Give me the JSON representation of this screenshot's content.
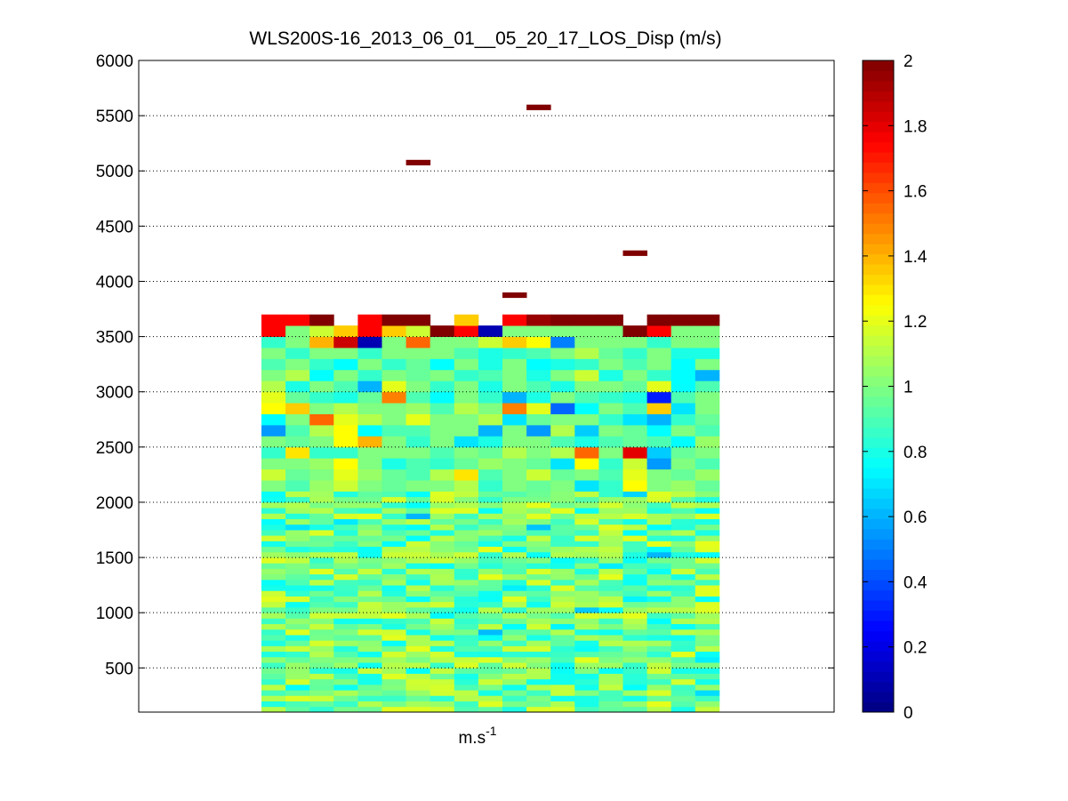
{
  "chart_data": {
    "type": "heatmap",
    "title": "WLS200S-16_2013_06_01__05_20_17_LOS_Disp (m/s)",
    "xlabel": "m.s",
    "xlabel_superscript": "-1",
    "ylabel": "",
    "ylim": [
      100,
      6000
    ],
    "y_ticks": [
      "500",
      "1000",
      "1500",
      "2000",
      "2500",
      "3000",
      "3500",
      "4000",
      "4500",
      "5000",
      "5500",
      "6000"
    ],
    "grid": "horizontal dotted",
    "colorbar": {
      "colormap": "jet",
      "range": [
        0,
        2
      ],
      "ticks": [
        "0",
        "0.2",
        "0.4",
        "0.6",
        "0.8",
        "1",
        "1.2",
        "1.4",
        "1.6",
        "1.8",
        "2"
      ]
    },
    "columns": 19,
    "range_gate_m": 50,
    "grid_values": {
      "3650": [
        2,
        null,
        null,
        null,
        null,
        null,
        null,
        null,
        null,
        null,
        null,
        null,
        2,
        null,
        null,
        null,
        null,
        null,
        null
      ],
      "3600": [
        1.75,
        1.75,
        2,
        null,
        1.75,
        2,
        2,
        null,
        1.35,
        null,
        1.75,
        1.95,
        2,
        2,
        2,
        null,
        2,
        2,
        2
      ],
      "3500": [
        1.75,
        1,
        1.15,
        1.35,
        1.75,
        1.35,
        1.15,
        2,
        1.75,
        0.1,
        1,
        1,
        1,
        1,
        1,
        2,
        1.75,
        1,
        1
      ],
      "3400": [
        0.85,
        1,
        1.4,
        1.85,
        0.1,
        1,
        1.55,
        1,
        1,
        1.15,
        1.35,
        1.25,
        0.5,
        1,
        1,
        1,
        0.85,
        1,
        1
      ],
      "3300": [
        1,
        0.85,
        1,
        1,
        0.85,
        1,
        1,
        1,
        0.9,
        0.8,
        0.85,
        0.9,
        1,
        1.1,
        0.95,
        0.85,
        1,
        0.8,
        0.8
      ],
      "3200": [
        0.9,
        1,
        0.85,
        0.75,
        1,
        0.85,
        0.95,
        0.75,
        1,
        0.8,
        1,
        0.75,
        0.8,
        0.85,
        1,
        0.9,
        1,
        0.75,
        1
      ],
      "3100": [
        1,
        1.1,
        0.75,
        1,
        0.85,
        1,
        0.95,
        1,
        0.85,
        0.9,
        1,
        0.8,
        1,
        1.15,
        0.8,
        1,
        0.85,
        0.75,
        0.6
      ],
      "3000": [
        1.1,
        0.8,
        1,
        0.9,
        0.6,
        1.2,
        1,
        0.85,
        1,
        0.8,
        1,
        0.9,
        0.8,
        1,
        1,
        0.95,
        1.2,
        0.75,
        0.9
      ],
      "2900": [
        1.2,
        0.95,
        0.85,
        0.8,
        0.95,
        1.5,
        0.9,
        0.75,
        1,
        0.85,
        0.6,
        0.8,
        1,
        0.9,
        0.85,
        0.8,
        0.3,
        0.9,
        1
      ],
      "2800": [
        1.25,
        1.35,
        1,
        1.1,
        1,
        1,
        1.05,
        0.9,
        1.1,
        1,
        1.5,
        1.2,
        0.45,
        0.75,
        1,
        0.9,
        1.35,
        0.7,
        1
      ],
      "2700": [
        0.75,
        1,
        1.55,
        1.2,
        1.1,
        1,
        1.2,
        1,
        1,
        1.1,
        0.7,
        0.95,
        1,
        1,
        0.85,
        0.7,
        0.6,
        0.85,
        0.95
      ],
      "2600": [
        0.55,
        0.9,
        1.1,
        1.25,
        0.75,
        0.9,
        0.9,
        1,
        1,
        0.6,
        1,
        0.55,
        1.1,
        0.65,
        1,
        0.95,
        0.75,
        1,
        0.9
      ],
      "2500": [
        1,
        0.95,
        1,
        1.25,
        1.4,
        1,
        0.85,
        1,
        0.7,
        0.8,
        1,
        1,
        0.9,
        0.8,
        0.9,
        0.95,
        0.9,
        0.75,
        1.05
      ],
      "2400": [
        0.85,
        1.3,
        0.85,
        0.85,
        1,
        1,
        1,
        0.9,
        1,
        0.95,
        1.1,
        1,
        1.1,
        1.55,
        1,
        1.8,
        0.65,
        0.95,
        1
      ],
      "2300": [
        1,
        1,
        1.05,
        1.25,
        1,
        0.8,
        0.9,
        0.85,
        0.95,
        1.05,
        1,
        0.95,
        0.7,
        1.25,
        0.85,
        1.15,
        0.55,
        1,
        0.9
      ],
      "2200": [
        1.15,
        0.95,
        1,
        1.2,
        1.05,
        0.95,
        0.9,
        1.1,
        1.3,
        0.9,
        1,
        1.15,
        0.95,
        1,
        0.9,
        1.2,
        1,
        0.95,
        1.05
      ],
      "2100": [
        1,
        0.9,
        1.05,
        1.15,
        1,
        0.95,
        1,
        1,
        1.1,
        0.85,
        1,
        0.95,
        1,
        0.7,
        0.85,
        1.25,
        1,
        1.05,
        0.95
      ]
    },
    "background_value_range": [
      0.75,
      1.2
    ],
    "data_column_extent_m": [
      100,
      3600
    ]
  }
}
